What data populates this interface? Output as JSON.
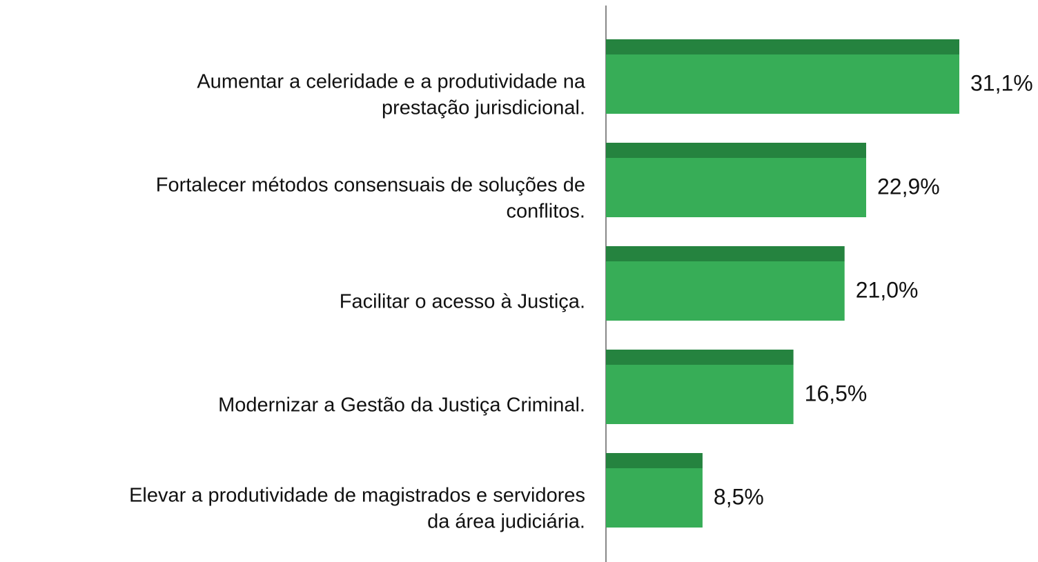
{
  "chart_data": {
    "type": "barh",
    "categories": [
      [
        "Aumentar a celeridade e a produtividade na",
        "prestação jurisdicional."
      ],
      [
        "Fortalecer métodos consensuais de soluções de",
        "conflitos."
      ],
      [
        "Facilitar o acesso à Justiça."
      ],
      [
        "Modernizar a Gestão da Justiça Criminal."
      ],
      [
        "Elevar a produtividade de magistrados e servidores",
        "da área judiciária."
      ]
    ],
    "values": [
      31.1,
      22.9,
      21.0,
      16.5,
      8.5
    ],
    "value_labels": [
      "31,1%",
      "22,9%",
      "21,0%",
      "16,5%",
      "8,5%"
    ],
    "color": "#37ad57",
    "accent_color": "#25833f",
    "xlim": [
      0,
      38
    ]
  }
}
